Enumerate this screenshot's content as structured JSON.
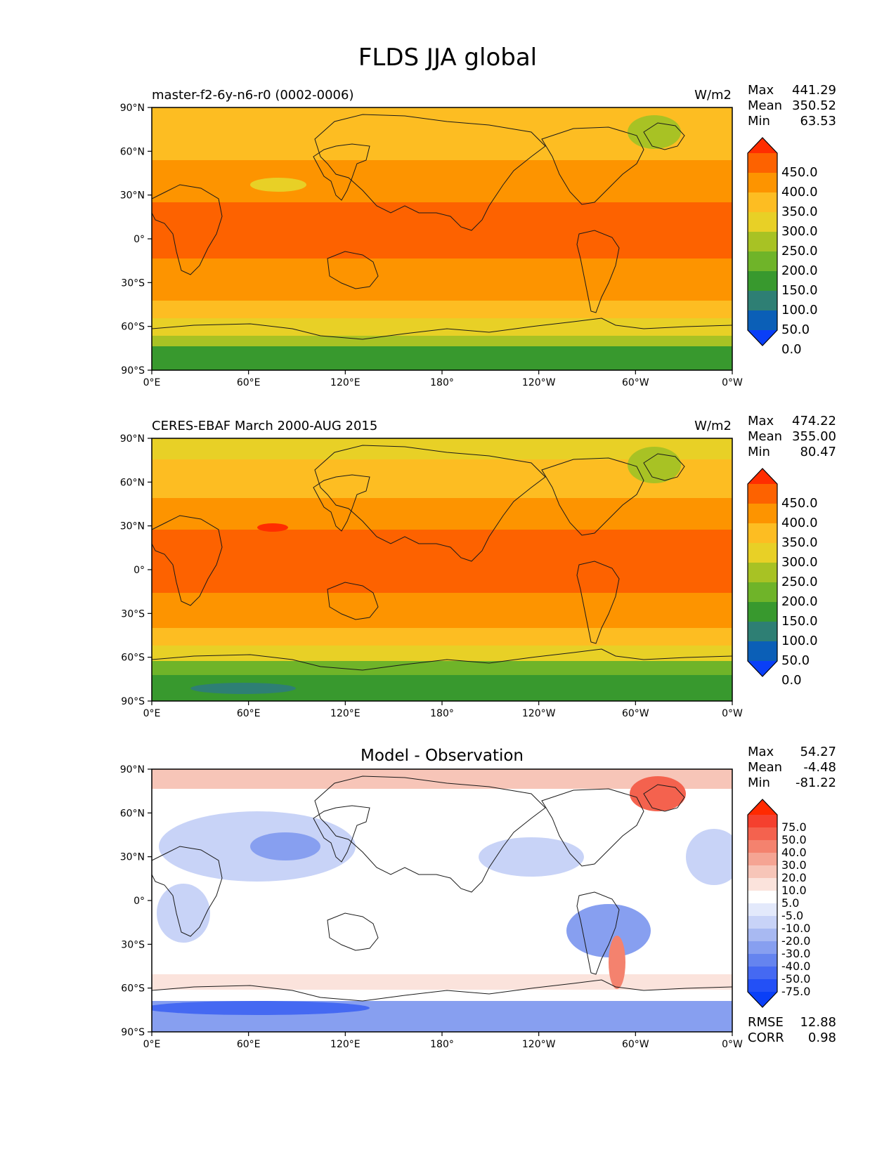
{
  "title": "FLDS JJA global",
  "lat_labels": [
    "90°N",
    "60°N",
    "30°N",
    "0°",
    "30°S",
    "60°S",
    "90°S"
  ],
  "lon_labels": [
    "0°E",
    "60°E",
    "120°E",
    "180°",
    "120°W",
    "60°W",
    "0°W"
  ],
  "panels": [
    {
      "left_title": "master-f2-6y-n6-r0 (0002-0006)",
      "center_title": "",
      "units": "W/m2",
      "stats": [
        {
          "label": "Max",
          "value": "441.29"
        },
        {
          "label": "Mean",
          "value": "350.52"
        },
        {
          "label": "Min",
          "value": "63.53"
        }
      ],
      "colorbar_labels": [
        "450.0",
        "400.0",
        "350.0",
        "300.0",
        "250.0",
        "200.0",
        "150.0",
        "100.0",
        "50.0",
        "0.0"
      ],
      "colorbar_colors": [
        "#ff2d00",
        "#fd6200",
        "#fd9400",
        "#fdbd22",
        "#e8d026",
        "#a8c224",
        "#6fb429",
        "#38992e",
        "#2e7f74",
        "#0b5fb7",
        "#0a3ff7"
      ],
      "extra_stats": []
    },
    {
      "left_title": "CERES-EBAF March 2000-AUG 2015",
      "center_title": "",
      "units": "W/m2",
      "stats": [
        {
          "label": "Max",
          "value": "474.22"
        },
        {
          "label": "Mean",
          "value": "355.00"
        },
        {
          "label": "Min",
          "value": "80.47"
        }
      ],
      "colorbar_labels": [
        "450.0",
        "400.0",
        "350.0",
        "300.0",
        "250.0",
        "200.0",
        "150.0",
        "100.0",
        "50.0",
        "0.0"
      ],
      "colorbar_colors": [
        "#ff2d00",
        "#fd6200",
        "#fd9400",
        "#fdbd22",
        "#e8d026",
        "#a8c224",
        "#6fb429",
        "#38992e",
        "#2e7f74",
        "#0b5fb7",
        "#0a3ff7"
      ],
      "extra_stats": []
    },
    {
      "left_title": "",
      "center_title": "Model - Observation",
      "units": "",
      "stats": [
        {
          "label": "Max",
          "value": "54.27"
        },
        {
          "label": "Mean",
          "value": "-4.48"
        },
        {
          "label": "Min",
          "value": "-81.22"
        }
      ],
      "colorbar_labels": [
        "75.0",
        "50.0",
        "40.0",
        "30.0",
        "20.0",
        "10.0",
        "5.0",
        "-5.0",
        "-10.0",
        "-20.0",
        "-30.0",
        "-40.0",
        "-50.0",
        "-75.0"
      ],
      "colorbar_colors": [
        "#ff2a00",
        "#f5402e",
        "#f4624e",
        "#f4826e",
        "#f5a493",
        "#f7c5b8",
        "#fbe3dc",
        "#ffffff",
        "#e3e9fb",
        "#c8d3f7",
        "#a8b9f2",
        "#879ff0",
        "#6584ef",
        "#4569f2",
        "#2350f6",
        "#0a3ff7"
      ],
      "extra_stats": [
        {
          "label": "RMSE",
          "value": "12.88"
        },
        {
          "label": "CORR",
          "value": "0.98"
        }
      ]
    }
  ]
}
